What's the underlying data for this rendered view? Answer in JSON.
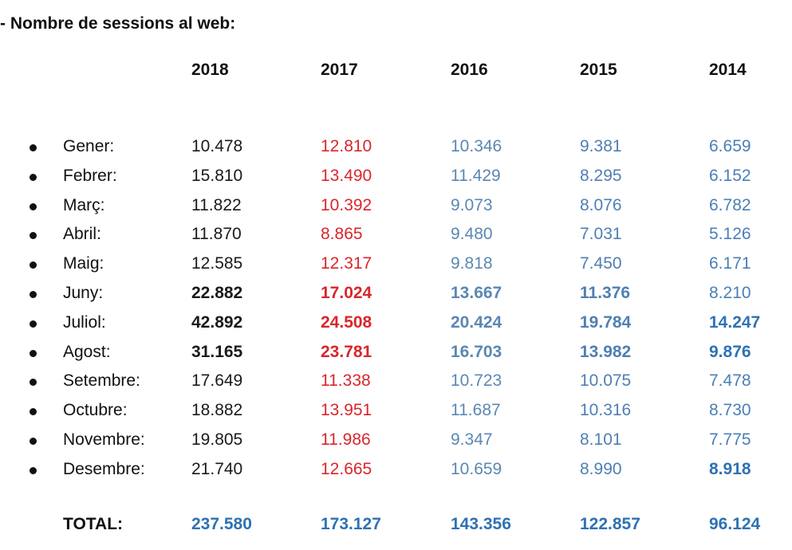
{
  "title": "- Nombre de sessions al web:",
  "years": [
    "2018",
    "2017",
    "2016",
    "2015",
    "2014"
  ],
  "colors": {
    "2018": "#1a1a1a",
    "2017": "#d9262c",
    "2016": "#5b87b3",
    "2015": "#4f7fb2",
    "2014": "#4a7fb8",
    "total": "#2e72b3"
  },
  "rows": [
    {
      "month": "Gener:",
      "v": [
        "10.478",
        "12.810",
        "10.346",
        "9.381",
        "6.659"
      ],
      "bold": [
        false,
        false,
        false,
        false,
        false
      ]
    },
    {
      "month": "Febrer:",
      "v": [
        "15.810",
        "13.490",
        "11.429",
        "8.295",
        "6.152"
      ],
      "bold": [
        false,
        false,
        false,
        false,
        false
      ]
    },
    {
      "month": "Març:",
      "v": [
        "11.822",
        "10.392",
        "9.073",
        "8.076",
        "6.782"
      ],
      "bold": [
        false,
        false,
        false,
        false,
        false
      ]
    },
    {
      "month": "Abril:",
      "v": [
        "11.870",
        "8.865",
        "9.480",
        "7.031",
        "5.126"
      ],
      "bold": [
        false,
        false,
        false,
        false,
        false
      ]
    },
    {
      "month": "Maig:",
      "v": [
        "12.585",
        "12.317",
        "9.818",
        "7.450",
        "6.171"
      ],
      "bold": [
        false,
        false,
        false,
        false,
        false
      ]
    },
    {
      "month": "Juny:",
      "v": [
        "22.882",
        "17.024",
        "13.667",
        "11.376",
        "8.210"
      ],
      "bold": [
        true,
        true,
        true,
        true,
        false
      ]
    },
    {
      "month": "Juliol:",
      "v": [
        "42.892",
        "24.508",
        "20.424",
        "19.784",
        "14.247"
      ],
      "bold": [
        true,
        true,
        true,
        true,
        true
      ]
    },
    {
      "month": "Agost:",
      "v": [
        "31.165",
        "23.781",
        "16.703",
        "13.982",
        "9.876"
      ],
      "bold": [
        true,
        true,
        true,
        true,
        true
      ]
    },
    {
      "month": "Setembre:",
      "v": [
        "17.649",
        "11.338",
        "10.723",
        "10.075",
        "7.478"
      ],
      "bold": [
        false,
        false,
        false,
        false,
        false
      ]
    },
    {
      "month": "Octubre:",
      "v": [
        "18.882",
        "13.951",
        "11.687",
        "10.316",
        "8.730"
      ],
      "bold": [
        false,
        false,
        false,
        false,
        false
      ]
    },
    {
      "month": "Novembre:",
      "v": [
        "19.805",
        "11.986",
        "9.347",
        "8.101",
        "7.775"
      ],
      "bold": [
        false,
        false,
        false,
        false,
        false
      ]
    },
    {
      "month": "Desembre:",
      "v": [
        "21.740",
        "12.665",
        "10.659",
        "8.990",
        "8.918"
      ],
      "bold": [
        false,
        false,
        false,
        false,
        true
      ]
    }
  ],
  "total": {
    "label": "TOTAL:",
    "v": [
      "237.580",
      "173.127",
      "143.356",
      "122.857",
      "96.124"
    ]
  }
}
